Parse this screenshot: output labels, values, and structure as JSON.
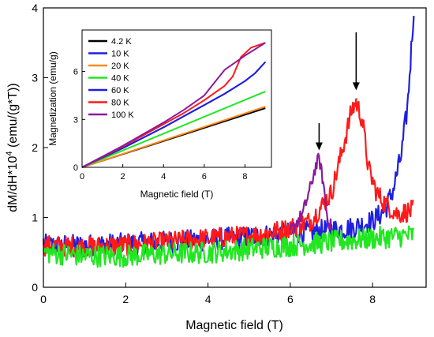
{
  "chart_data": [
    {
      "id": "main",
      "type": "line",
      "xlabel": "Magnetic field (T)",
      "ylabel_parts": [
        "dM/dH*10",
        "4",
        " (emu/(g*T))"
      ],
      "xlim": [
        0,
        9.3
      ],
      "ylim": [
        0,
        4
      ],
      "xticks": [
        0,
        2,
        4,
        6,
        8
      ],
      "yticks": [
        0,
        1,
        2,
        3,
        4
      ],
      "annotations": [
        {
          "type": "arrow",
          "x": 6.7,
          "y_from": 2.35,
          "y_to": 1.96
        },
        {
          "type": "arrow",
          "x": 7.6,
          "y_from": 3.65,
          "y_to": 2.82
        }
      ],
      "series": [
        {
          "color": "#1f1fe0",
          "noise": 0.16,
          "points": [
            [
              0,
              0.6
            ],
            [
              1,
              0.6
            ],
            [
              2,
              0.62
            ],
            [
              3,
              0.65
            ],
            [
              4,
              0.68
            ],
            [
              5,
              0.72
            ],
            [
              6,
              0.78
            ],
            [
              6.5,
              0.8
            ],
            [
              7,
              0.82
            ],
            [
              7.5,
              0.85
            ],
            [
              8,
              0.95
            ],
            [
              8.3,
              1.1
            ],
            [
              8.5,
              1.4
            ],
            [
              8.7,
              1.9
            ],
            [
              8.85,
              2.6
            ],
            [
              8.95,
              3.5
            ],
            [
              9.0,
              4.0
            ]
          ]
        },
        {
          "color": "#ff1a1a",
          "noise": 0.15,
          "points": [
            [
              0,
              0.6
            ],
            [
              1,
              0.58
            ],
            [
              2,
              0.6
            ],
            [
              3,
              0.65
            ],
            [
              4,
              0.7
            ],
            [
              5,
              0.74
            ],
            [
              5.5,
              0.78
            ],
            [
              6,
              0.85
            ],
            [
              6.5,
              0.95
            ],
            [
              7,
              1.35
            ],
            [
              7.3,
              2.05
            ],
            [
              7.5,
              2.55
            ],
            [
              7.6,
              2.65
            ],
            [
              7.75,
              2.4
            ],
            [
              7.9,
              1.7
            ],
            [
              8.1,
              1.35
            ],
            [
              8.3,
              1.2
            ],
            [
              8.6,
              1.05
            ],
            [
              9.0,
              1.1
            ]
          ]
        },
        {
          "color": "#8b1a9e",
          "noise": 0.1,
          "points": [
            [
              6.0,
              0.8
            ],
            [
              6.3,
              1.05
            ],
            [
              6.5,
              1.45
            ],
            [
              6.6,
              1.7
            ],
            [
              6.7,
              1.85
            ],
            [
              6.8,
              1.5
            ],
            [
              6.9,
              1.0
            ],
            [
              7.0,
              0.85
            ]
          ]
        },
        {
          "color": "#22e622",
          "noise": 0.16,
          "points": [
            [
              0,
              0.5
            ],
            [
              1,
              0.45
            ],
            [
              2,
              0.45
            ],
            [
              3,
              0.48
            ],
            [
              4,
              0.5
            ],
            [
              5,
              0.55
            ],
            [
              6,
              0.6
            ],
            [
              7,
              0.65
            ],
            [
              8,
              0.7
            ],
            [
              9,
              0.75
            ]
          ]
        }
      ]
    },
    {
      "id": "inset",
      "type": "line",
      "xlabel": "Magnetic field (T)",
      "ylabel": "Magnetization (emu/g)",
      "xlim": [
        0,
        9.3
      ],
      "ylim": [
        0,
        8.6
      ],
      "xticks": [
        0,
        2,
        4,
        6,
        8
      ],
      "yticks": [
        0,
        3,
        6
      ],
      "legend_position": "top-left",
      "series": [
        {
          "name": "4.2 K",
          "color": "#000000",
          "points": [
            [
              0,
              0
            ],
            [
              9,
              3.7
            ]
          ]
        },
        {
          "name": "10 K",
          "color": "#1f1fe0",
          "points": [
            [
              0,
              0
            ],
            [
              2,
              1.2
            ],
            [
              4,
              2.5
            ],
            [
              5,
              3.2
            ],
            [
              6,
              3.9
            ],
            [
              7,
              4.6
            ],
            [
              8,
              5.4
            ],
            [
              8.5,
              5.9
            ],
            [
              9,
              6.6
            ]
          ]
        },
        {
          "name": "20 K",
          "color": "#ff8c1a",
          "points": [
            [
              0,
              0
            ],
            [
              9,
              3.8
            ]
          ]
        },
        {
          "name": "40 K",
          "color": "#22e622",
          "points": [
            [
              0,
              0
            ],
            [
              9,
              4.75
            ]
          ]
        },
        {
          "name": "60 K",
          "color": "#1f1fe0",
          "points": [
            [
              0,
              0
            ],
            [
              2,
              1.2
            ],
            [
              4,
              2.5
            ],
            [
              5,
              3.2
            ],
            [
              6,
              3.9
            ],
            [
              7,
              4.6
            ],
            [
              8,
              5.4
            ],
            [
              8.5,
              5.9
            ],
            [
              9,
              6.6
            ]
          ]
        },
        {
          "name": "80 K",
          "color": "#ff1a1a",
          "points": [
            [
              0,
              0
            ],
            [
              2,
              1.3
            ],
            [
              4,
              2.7
            ],
            [
              5,
              3.4
            ],
            [
              6,
              4.2
            ],
            [
              7,
              5.1
            ],
            [
              7.4,
              5.7
            ],
            [
              7.8,
              6.9
            ],
            [
              8.3,
              7.5
            ],
            [
              9,
              7.8
            ]
          ]
        },
        {
          "name": "100 K",
          "color": "#8b1a9e",
          "points": [
            [
              0,
              0
            ],
            [
              2,
              1.35
            ],
            [
              4,
              2.8
            ],
            [
              5,
              3.6
            ],
            [
              6,
              4.5
            ],
            [
              6.5,
              5.3
            ],
            [
              7,
              6.1
            ],
            [
              8,
              7.0
            ],
            [
              9,
              7.8
            ]
          ]
        }
      ]
    }
  ]
}
